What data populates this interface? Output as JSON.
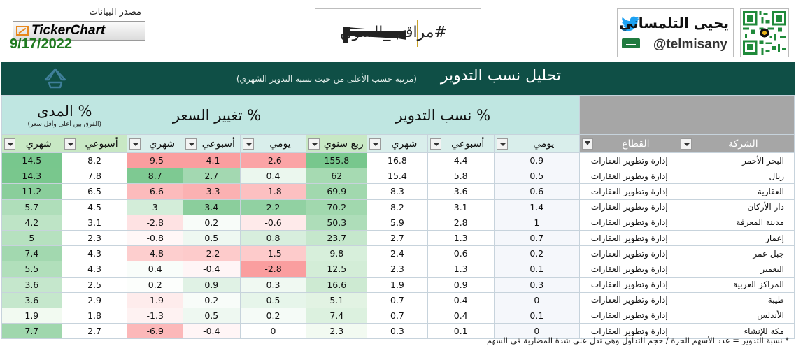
{
  "header": {
    "source_label": "مصدر البيانات",
    "source_brand": "TickerChart",
    "date": "9/17/2022",
    "hashtag": "#مراقب_السوق",
    "author_name": "يحيى التلمساني",
    "author_handle": "@telmisany"
  },
  "title": {
    "main": "تحليل نسب التدوير",
    "sub": "(مرتبة حسب الأعلى من حيث نسبة التدوير الشهري)"
  },
  "groups": {
    "range": "المدى %",
    "range_note": "(الفرق بين أعلى وأقل سعر)",
    "price_change": "تغيير السعر %",
    "turnover": "نسب التدوير %"
  },
  "columns": {
    "range_monthly": "شهري",
    "range_weekly": "أسبوعي",
    "price_monthly": "شهري",
    "price_weekly": "أسبوعي",
    "price_daily": "يومي",
    "turn_quarterly": "ربع سنوي",
    "turn_monthly": "شهري",
    "turn_weekly": "أسبوعي",
    "turn_daily": "يومي",
    "sector": "القطاع",
    "company": "الشركة"
  },
  "rows": [
    {
      "company": "البحر الأحمر",
      "sector": "إدارة وتطوير العقارات",
      "turn_daily": "0.9",
      "turn_weekly": "4.4",
      "turn_monthly": "16.8",
      "turn_quarterly": "155.8",
      "price_daily": "-2.6",
      "price_weekly": "-4.1",
      "price_monthly": "-9.5",
      "range_weekly": "8.2",
      "range_monthly": "14.5"
    },
    {
      "company": "رتال",
      "sector": "إدارة وتطوير العقارات",
      "turn_daily": "0.5",
      "turn_weekly": "5.8",
      "turn_monthly": "15.4",
      "turn_quarterly": "62",
      "price_daily": "0.4",
      "price_weekly": "2.7",
      "price_monthly": "8.7",
      "range_weekly": "7.8",
      "range_monthly": "14.3"
    },
    {
      "company": "العقارية",
      "sector": "إدارة وتطوير العقارات",
      "turn_daily": "0.6",
      "turn_weekly": "3.6",
      "turn_monthly": "8.3",
      "turn_quarterly": "69.9",
      "price_daily": "-1.8",
      "price_weekly": "-3.3",
      "price_monthly": "-6.6",
      "range_weekly": "6.5",
      "range_monthly": "11.2"
    },
    {
      "company": "دار الأركان",
      "sector": "إدارة وتطوير العقارات",
      "turn_daily": "1.4",
      "turn_weekly": "3.1",
      "turn_monthly": "8.2",
      "turn_quarterly": "70.2",
      "price_daily": "2.2",
      "price_weekly": "3.4",
      "price_monthly": "3",
      "range_weekly": "4.5",
      "range_monthly": "5.7"
    },
    {
      "company": "مدينة المعرفة",
      "sector": "إدارة وتطوير العقارات",
      "turn_daily": "1",
      "turn_weekly": "2.8",
      "turn_monthly": "5.9",
      "turn_quarterly": "50.3",
      "price_daily": "-0.6",
      "price_weekly": "0.2",
      "price_monthly": "-2.8",
      "range_weekly": "3.1",
      "range_monthly": "4.2"
    },
    {
      "company": "إعمار",
      "sector": "إدارة وتطوير العقارات",
      "turn_daily": "0.7",
      "turn_weekly": "1.3",
      "turn_monthly": "2.7",
      "turn_quarterly": "23.7",
      "price_daily": "0.8",
      "price_weekly": "0.5",
      "price_monthly": "-0.8",
      "range_weekly": "2.3",
      "range_monthly": "5"
    },
    {
      "company": "جبل عمر",
      "sector": "إدارة وتطوير العقارات",
      "turn_daily": "0.2",
      "turn_weekly": "0.6",
      "turn_monthly": "2.4",
      "turn_quarterly": "9.8",
      "price_daily": "-1.5",
      "price_weekly": "-2.2",
      "price_monthly": "-4.8",
      "range_weekly": "4.3",
      "range_monthly": "7.4"
    },
    {
      "company": "التعمير",
      "sector": "إدارة وتطوير العقارات",
      "turn_daily": "0.1",
      "turn_weekly": "1.3",
      "turn_monthly": "2.3",
      "turn_quarterly": "12.5",
      "price_daily": "-2.8",
      "price_weekly": "-0.4",
      "price_monthly": "0.4",
      "range_weekly": "4.3",
      "range_monthly": "5.5"
    },
    {
      "company": "المراكز العربية",
      "sector": "إدارة وتطوير العقارات",
      "turn_daily": "0.3",
      "turn_weekly": "0.9",
      "turn_monthly": "1.9",
      "turn_quarterly": "16.6",
      "price_daily": "0.3",
      "price_weekly": "0.9",
      "price_monthly": "0.2",
      "range_weekly": "2.5",
      "range_monthly": "3.6"
    },
    {
      "company": "طيبة",
      "sector": "إدارة وتطوير العقارات",
      "turn_daily": "0",
      "turn_weekly": "0.4",
      "turn_monthly": "0.7",
      "turn_quarterly": "5.1",
      "price_daily": "0.5",
      "price_weekly": "0.2",
      "price_monthly": "-1.9",
      "range_weekly": "2.9",
      "range_monthly": "3.6"
    },
    {
      "company": "الأندلس",
      "sector": "إدارة وتطوير العقارات",
      "turn_daily": "0.1",
      "turn_weekly": "0.4",
      "turn_monthly": "0.7",
      "turn_quarterly": "7.4",
      "price_daily": "0.2",
      "price_weekly": "0.5",
      "price_monthly": "-1.3",
      "range_weekly": "1.8",
      "range_monthly": "1.9"
    },
    {
      "company": "مكة للإنشاء",
      "sector": "إدارة وتطوير العقارات",
      "turn_daily": "0",
      "turn_weekly": "0.1",
      "turn_monthly": "0.3",
      "turn_quarterly": "2.3",
      "price_daily": "0",
      "price_weekly": "-0.4",
      "price_monthly": "-6.9",
      "range_weekly": "2.7",
      "range_monthly": "7.7"
    }
  ],
  "footnote": "* نسبة التدوير = عدد الأسهم الحرة / حجم التداول وهي تدل على شدة المضاربة في السهم",
  "colors": {
    "title_band": "#0f4f46",
    "group_header": "#bfe6e1",
    "positive_strong": "#63be7b",
    "negative_strong": "#f8696b"
  }
}
